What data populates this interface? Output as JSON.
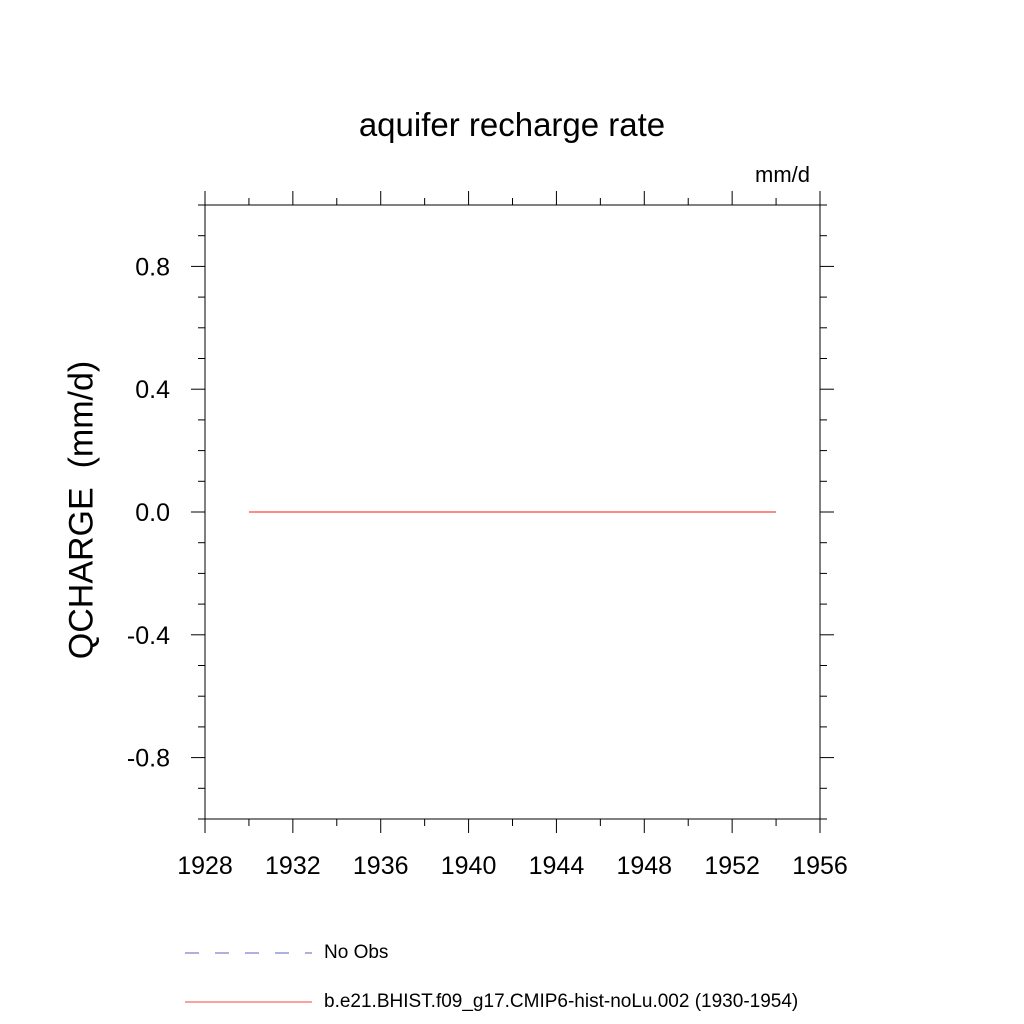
{
  "chart_data": {
    "type": "line",
    "title": "aquifer recharge rate",
    "units_label": "mm/d",
    "ylabel": "QCHARGE  (mm/d)",
    "xlim": [
      1928,
      1956
    ],
    "ylim": [
      -1.0,
      1.0
    ],
    "x_ticks": [
      "1928",
      "1932",
      "1936",
      "1940",
      "1944",
      "1948",
      "1952",
      "1956"
    ],
    "y_ticks": [
      "0.8",
      "0.4",
      "0.0",
      "-0.4",
      "-0.8"
    ],
    "series": [
      {
        "name": "b.e21.BHIST.f09_g17.CMIP6-hist-noLu.002 (1930-1954)",
        "color": "#ff4040",
        "style": "solid",
        "x": [
          1930,
          1954
        ],
        "y": [
          0.0,
          0.0
        ]
      }
    ],
    "legend": [
      {
        "label": "No Obs",
        "color": "#6060c0",
        "style": "dashed"
      },
      {
        "label": "b.e21.BHIST.f09_g17.CMIP6-hist-noLu.002 (1930-1954)",
        "color": "#ff4040",
        "style": "solid"
      }
    ],
    "legend_position": "bottom"
  }
}
